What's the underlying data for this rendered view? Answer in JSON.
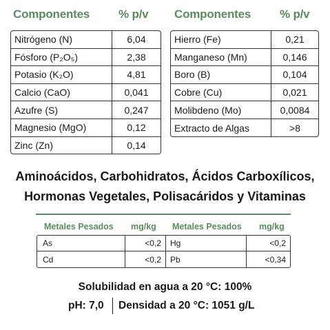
{
  "left_table": {
    "header_name": "Componentes",
    "header_value": "% p/v",
    "rows": [
      {
        "name": "Nitrógeno (N)",
        "value": "6,04"
      },
      {
        "name": "Fósforo (P₂O₅)",
        "value": "2,38"
      },
      {
        "name": "Potasio (K₂O)",
        "value": "4,81"
      },
      {
        "name": "Calcio (CaO)",
        "value": "0,041"
      },
      {
        "name": "Azufre (S)",
        "value": "0,247"
      },
      {
        "name": "Magnesio (MgO)",
        "value": "0,12"
      },
      {
        "name": "Zinc (Zn)",
        "value": "0,14"
      }
    ]
  },
  "right_table": {
    "header_name": "Componentes",
    "header_value": "% p/v",
    "rows": [
      {
        "name": "Hierro (Fe)",
        "value": "0,21"
      },
      {
        "name": "Manganeso (Mn)",
        "value": "0,146"
      },
      {
        "name": "Boro (B)",
        "value": "0,104"
      },
      {
        "name": "Cobre (Cu)",
        "value": "0,021"
      },
      {
        "name": "Molibdeno (Mo)",
        "value": "0,0084"
      },
      {
        "name": "Extracto de Algas",
        "value": ">8"
      }
    ]
  },
  "headline": {
    "line1": "Aminoácidos, Carbohidratos, Ácidos Carboxílicos,",
    "line2": "Hormonas Vegetales, Polisacáridos y Vitaminas"
  },
  "metals": {
    "header_name": "Metales Pesados",
    "header_unit": "mg/kg",
    "rows": [
      {
        "left_name": "As",
        "left_value": "<0,2",
        "right_name": "Hg",
        "right_value": "<0,2"
      },
      {
        "left_name": "Cd",
        "left_value": "<0,2",
        "right_name": "Pb",
        "right_value": "<0,34"
      }
    ]
  },
  "footer": {
    "solubility": "Solubilidad en agua a 20 °C: 100%",
    "ph": "pH: 7,0",
    "density": "Densidad a 20 °C: 1051 g/L"
  }
}
